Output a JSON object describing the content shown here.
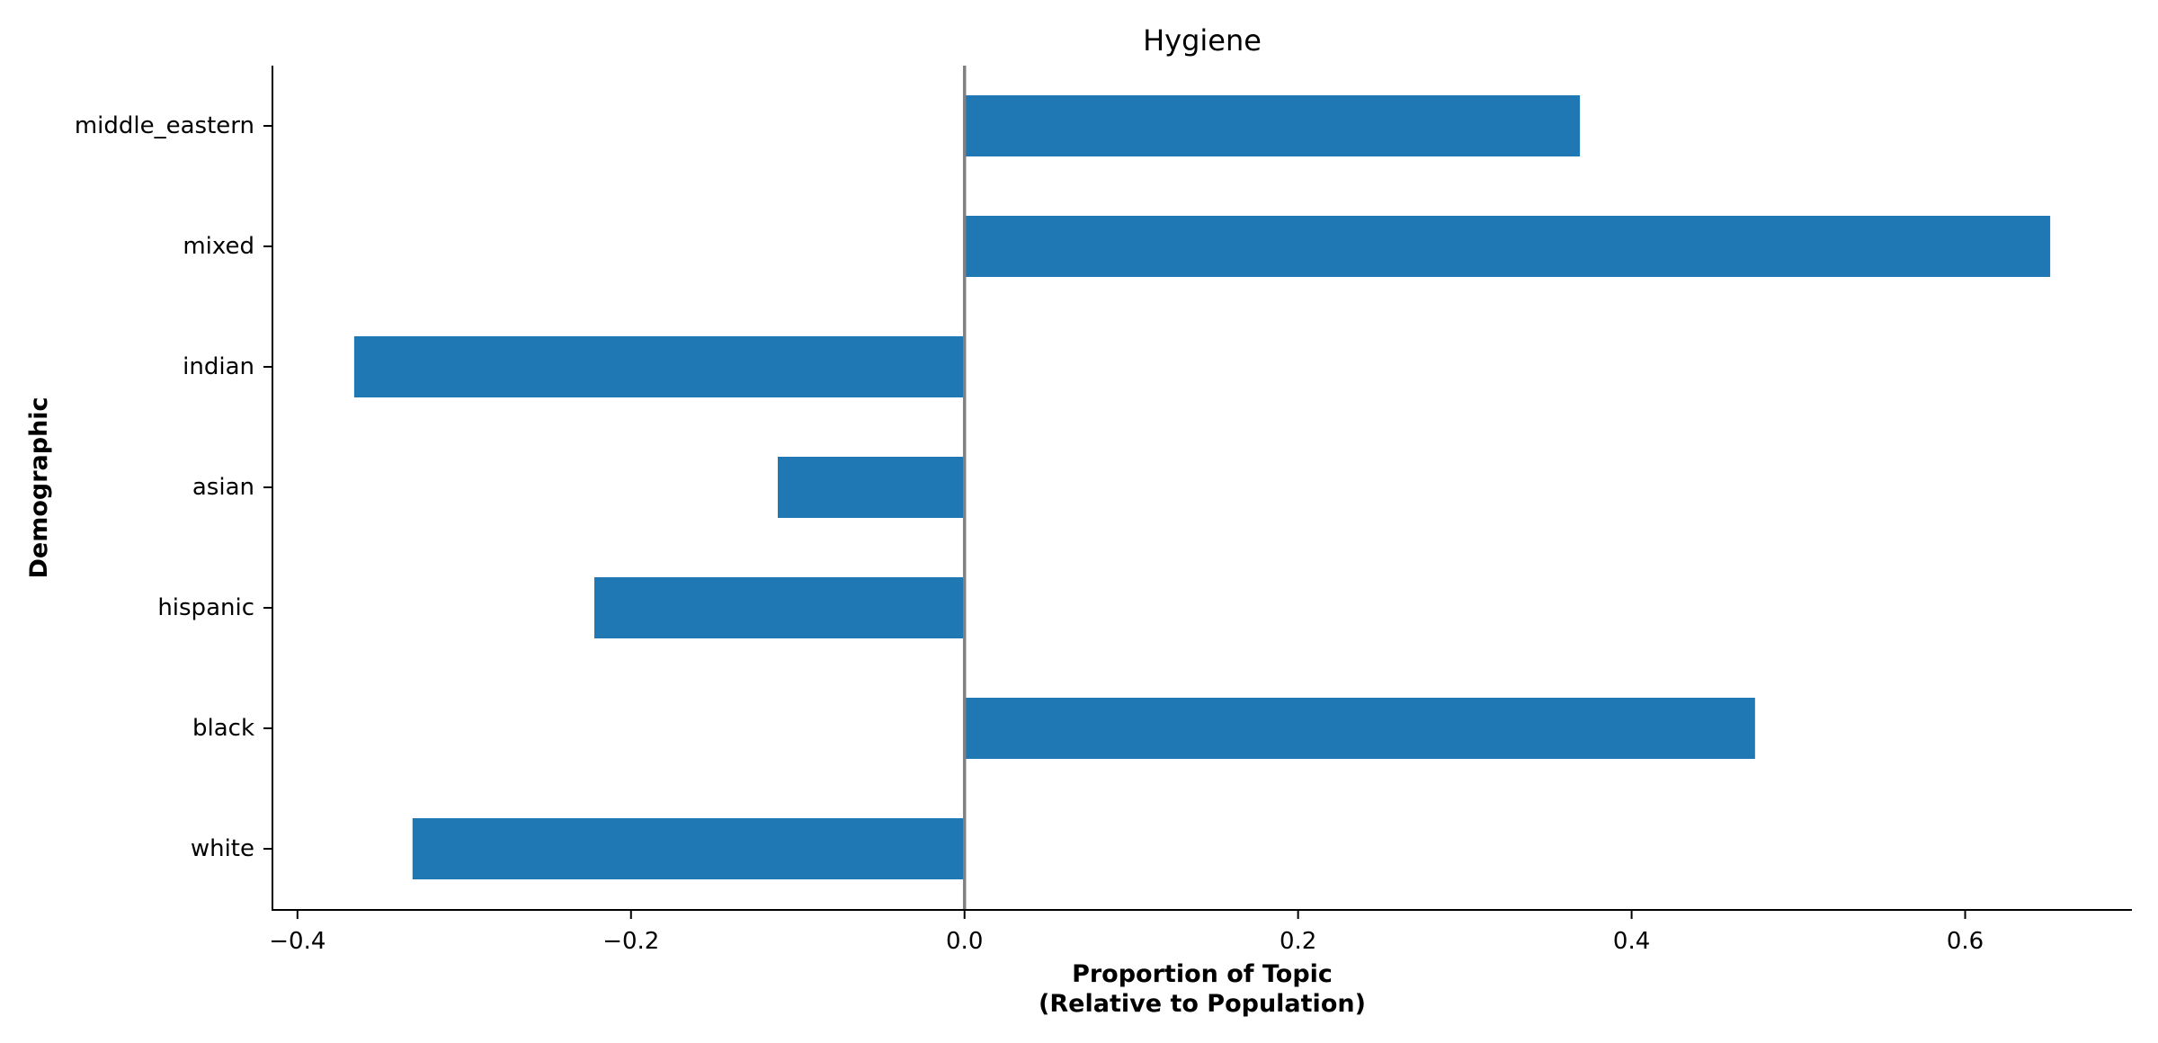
{
  "chart_data": {
    "type": "bar",
    "orientation": "horizontal",
    "title": "Hygiene",
    "xlabel_lines": [
      "Proportion of Topic",
      "(Relative to Population)"
    ],
    "ylabel": "Demographic",
    "categories": [
      "white",
      "black",
      "hispanic",
      "asian",
      "indian",
      "mixed",
      "middle_eastern"
    ],
    "values": [
      -0.331,
      0.474,
      -0.222,
      -0.112,
      -0.366,
      0.651,
      0.369
    ],
    "xlim": [
      -0.415,
      0.7
    ],
    "xticks": [
      -0.4,
      -0.2,
      0.0,
      0.2,
      0.4,
      0.6
    ],
    "xtick_labels": [
      "−0.4",
      "−0.2",
      "0.0",
      "0.2",
      "0.4",
      "0.6"
    ],
    "grid": false,
    "zero_line": true,
    "colors": {
      "bar": "#1f77b4",
      "zero_line": "#808080",
      "axis": "#000000"
    }
  }
}
